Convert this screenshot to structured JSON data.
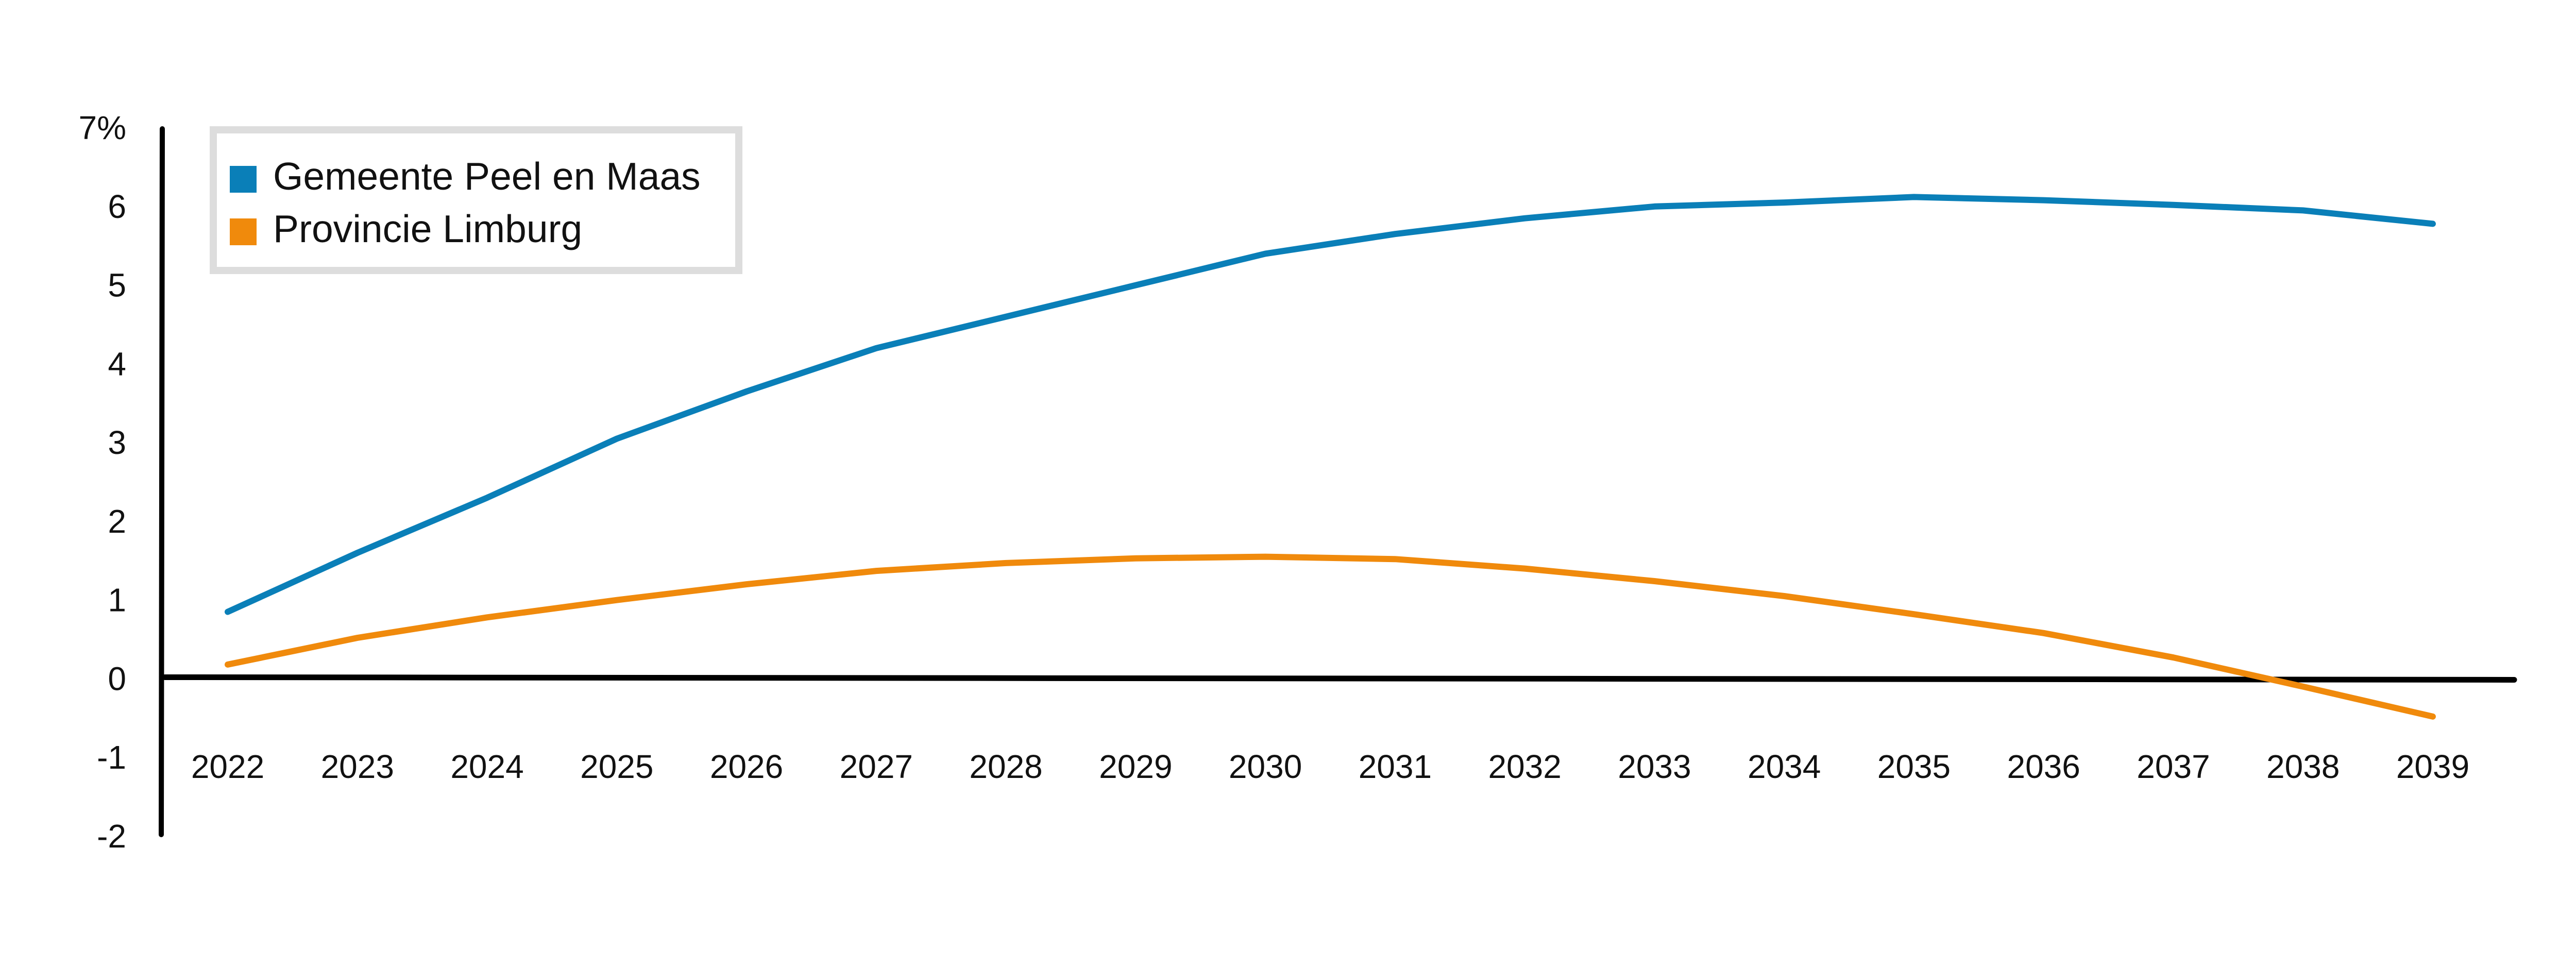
{
  "chart_data": {
    "type": "line",
    "title": "",
    "xlabel": "",
    "ylabel": "",
    "x": [
      2022,
      2023,
      2024,
      2025,
      2026,
      2027,
      2028,
      2029,
      2030,
      2031,
      2032,
      2033,
      2034,
      2035,
      2036,
      2037,
      2038,
      2039
    ],
    "ylim": [
      -2,
      7
    ],
    "y_ticks": [
      "7%",
      "6",
      "5",
      "4",
      "3",
      "2",
      "1",
      "0",
      "-1",
      "-2"
    ],
    "grid": false,
    "legend_position": "top-left",
    "series": [
      {
        "name": "Gemeente Peel en Maas",
        "color": "#0a7fb8",
        "values": [
          0.85,
          1.6,
          2.3,
          3.05,
          3.65,
          4.2,
          4.6,
          5.0,
          5.4,
          5.65,
          5.85,
          6.0,
          6.05,
          6.12,
          6.08,
          6.02,
          5.95,
          5.78
        ]
      },
      {
        "name": "Provincie Limburg",
        "color": "#f08a0c",
        "values": [
          0.18,
          0.52,
          0.78,
          1.0,
          1.2,
          1.37,
          1.47,
          1.53,
          1.55,
          1.52,
          1.4,
          1.24,
          1.05,
          0.82,
          0.58,
          0.27,
          -0.1,
          -0.48
        ]
      }
    ]
  }
}
